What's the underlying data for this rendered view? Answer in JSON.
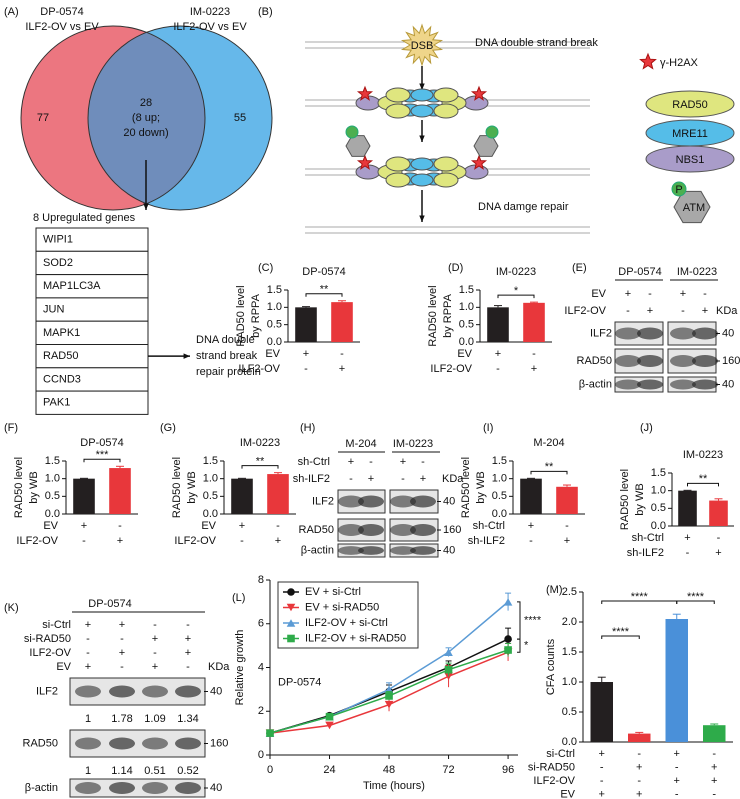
{
  "venn": {
    "panel": "(A)",
    "sets": [
      {
        "title": [
          "DP-0574",
          "ILF2-OV vs EV"
        ],
        "count": 77
      },
      {
        "title": [
          "IM-0223",
          "ILF2-OV vs EV"
        ],
        "count": 55
      }
    ],
    "overlap": {
      "count": 28,
      "detail": [
        "(8 up;",
        "20 down)"
      ]
    },
    "genes_title": "8 Upregulated genes",
    "genes": [
      "WIPI1",
      "SOD2",
      "MAP1LC3A",
      "JUN",
      "MAPK1",
      "RAD50",
      "CCND3",
      "PAK1"
    ],
    "highlight": "RAD50",
    "annotation": [
      "DNA double",
      "strand break",
      "repair protein"
    ]
  },
  "schematic": {
    "panel": "(B)",
    "dsb": "DSB",
    "top_caption": "DNA double strand break",
    "bottom_caption": "DNA damge repair",
    "legend": {
      "marker": "γ-H2AX",
      "proteins": [
        {
          "name": "RAD50",
          "color": "#dfe67f"
        },
        {
          "name": "MRE11",
          "color": "#55bde8"
        },
        {
          "name": "NBS1",
          "color": "#a99cc9"
        }
      ],
      "phospho": "P",
      "kinase": "ATM"
    }
  },
  "blots": [
    {
      "panel": "(E)",
      "groups": [
        "DP-0574",
        "IM-0223"
      ],
      "conditions": [
        {
          "name": "EV",
          "signs": [
            "+",
            "-",
            "+",
            "-"
          ]
        },
        {
          "name": "ILF2-OV",
          "signs": [
            "-",
            "+",
            "-",
            "+"
          ]
        }
      ],
      "unit": "KDa",
      "rows": [
        {
          "name": "ILF2",
          "marker": 40
        },
        {
          "name": "RAD50",
          "marker": 160
        },
        {
          "name": "β-actin",
          "marker": 40
        }
      ]
    },
    {
      "panel": "(H)",
      "groups": [
        "M-204",
        "IM-0223"
      ],
      "conditions": [
        {
          "name": "sh-Ctrl",
          "signs": [
            "+",
            "-",
            "+",
            "-"
          ]
        },
        {
          "name": "sh-ILF2",
          "signs": [
            "-",
            "+",
            "-",
            "+"
          ]
        }
      ],
      "unit": "KDa",
      "rows": [
        {
          "name": "ILF2",
          "marker": 40
        },
        {
          "name": "RAD50",
          "marker": 160
        },
        {
          "name": "β-actin",
          "marker": 40
        }
      ]
    },
    {
      "panel": "(K)",
      "groups": [
        "DP-0574"
      ],
      "conditions": [
        {
          "name": "si-Ctrl",
          "signs": [
            "+",
            "+",
            "-",
            "-"
          ]
        },
        {
          "name": "si-RAD50",
          "signs": [
            "-",
            "-",
            "+",
            "+"
          ]
        },
        {
          "name": "ILF2-OV",
          "signs": [
            "-",
            "+",
            "-",
            "+"
          ]
        },
        {
          "name": "EV",
          "signs": [
            "+",
            "-",
            "+",
            "-"
          ]
        }
      ],
      "unit": "KDa",
      "rows": [
        {
          "name": "ILF2",
          "marker": 40,
          "quant": [
            1,
            1.78,
            1.09,
            1.34
          ]
        },
        {
          "name": "RAD50",
          "marker": 160,
          "quant": [
            1,
            1.14,
            0.51,
            0.52
          ]
        },
        {
          "name": "β-actin",
          "marker": 40
        }
      ]
    }
  ],
  "chart_data": [
    {
      "type": "bar",
      "panel": "(C)",
      "title": "DP-0574",
      "ylabel": [
        "RAD50 level",
        "by RPPA"
      ],
      "values": [
        1.0,
        1.15
      ],
      "errors": [
        0.02,
        0.04
      ],
      "colors": [
        "#231f20",
        "#e8373b"
      ],
      "ylim": [
        0,
        1.5
      ],
      "yticks": [
        {
          "value": 0,
          "label": "0.0"
        },
        0.5,
        {
          "value": 1,
          "label": "1.0"
        },
        1.5
      ],
      "significance": [
        "**"
      ],
      "conditions": [
        {
          "name": "EV",
          "signs": [
            "+",
            "-"
          ]
        },
        {
          "name": "ILF2-OV",
          "signs": [
            "-",
            "+"
          ]
        }
      ]
    },
    {
      "type": "bar",
      "panel": "(D)",
      "title": "IM-0223",
      "ylabel": [
        "RAD50 level",
        "by RPPA"
      ],
      "values": [
        1.0,
        1.13
      ],
      "errors": [
        0.05,
        0.02
      ],
      "colors": [
        "#231f20",
        "#e8373b"
      ],
      "ylim": [
        0,
        1.5
      ],
      "yticks": [
        {
          "value": 0,
          "label": "0.0"
        },
        0.5,
        {
          "value": 1,
          "label": "1.0"
        },
        1.5
      ],
      "significance": [
        "*"
      ],
      "conditions": [
        {
          "name": "EV",
          "signs": [
            "+",
            "-"
          ]
        },
        {
          "name": "ILF2-OV",
          "signs": [
            "-",
            "+"
          ]
        }
      ]
    },
    {
      "type": "bar",
      "panel": "(F)",
      "title": "DP-0574",
      "ylabel": [
        "RAD50 level",
        "by WB"
      ],
      "values": [
        1.0,
        1.3
      ],
      "errors": [
        0.01,
        0.05
      ],
      "colors": [
        "#231f20",
        "#e8373b"
      ],
      "ylim": [
        0,
        1.5
      ],
      "yticks": [
        {
          "value": 0,
          "label": "0.0"
        },
        0.5,
        {
          "value": 1,
          "label": "1.0"
        },
        1.5
      ],
      "significance": [
        "***"
      ],
      "conditions": [
        {
          "name": "EV",
          "signs": [
            "+",
            "-"
          ]
        },
        {
          "name": "ILF2-OV",
          "signs": [
            "-",
            "+"
          ]
        }
      ]
    },
    {
      "type": "bar",
      "panel": "(G)",
      "title": "IM-0223",
      "ylabel": [
        "RAD50 level",
        "by WB"
      ],
      "values": [
        1.0,
        1.13
      ],
      "errors": [
        0.01,
        0.04
      ],
      "colors": [
        "#231f20",
        "#e8373b"
      ],
      "ylim": [
        0,
        1.5
      ],
      "yticks": [
        {
          "value": 0,
          "label": "0.0"
        },
        0.5,
        {
          "value": 1,
          "label": "1.0"
        },
        1.5
      ],
      "significance": [
        "**"
      ],
      "conditions": [
        {
          "name": "EV",
          "signs": [
            "+",
            "-"
          ]
        },
        {
          "name": "ILF2-OV",
          "signs": [
            "-",
            "+"
          ]
        }
      ]
    },
    {
      "type": "bar",
      "panel": "(I)",
      "title": "M-204",
      "ylabel": [
        "RAD50 level",
        "by WB"
      ],
      "values": [
        1.0,
        0.77
      ],
      "errors": [
        0.01,
        0.05
      ],
      "colors": [
        "#231f20",
        "#e8373b"
      ],
      "ylim": [
        0,
        1.5
      ],
      "yticks": [
        {
          "value": 0,
          "label": "0.0"
        },
        0.5,
        {
          "value": 1,
          "label": "1.0"
        },
        1.5
      ],
      "significance": [
        "**"
      ],
      "conditions": [
        {
          "name": "sh-Ctrl",
          "signs": [
            "+",
            "-"
          ]
        },
        {
          "name": "sh-ILF2",
          "signs": [
            "-",
            "+"
          ]
        }
      ]
    },
    {
      "type": "bar",
      "panel": "(J)",
      "title": "IM-0223",
      "ylabel": [
        "RAD50 level",
        "by WB"
      ],
      "values": [
        1.0,
        0.72
      ],
      "errors": [
        0.01,
        0.05
      ],
      "colors": [
        "#231f20",
        "#e8373b"
      ],
      "ylim": [
        0,
        1.5
      ],
      "yticks": [
        {
          "value": 0,
          "label": "0.0"
        },
        0.5,
        {
          "value": 1,
          "label": "1.0"
        },
        1.5
      ],
      "significance": [
        "**"
      ],
      "conditions": [
        {
          "name": "sh-Ctrl",
          "signs": [
            "+",
            "-"
          ]
        },
        {
          "name": "sh-ILF2",
          "signs": [
            "-",
            "+"
          ]
        }
      ]
    },
    {
      "type": "line",
      "panel": "(L)",
      "annotation": "DP-0574",
      "xlabel": "Time (hours)",
      "ylabel": "Relative growth",
      "x": [
        0,
        24,
        48,
        72,
        96
      ],
      "xlim": [
        0,
        100
      ],
      "xticks": [
        0,
        24,
        48,
        72,
        96
      ],
      "ylim": [
        0,
        8
      ],
      "yticks": [
        0,
        2,
        4,
        6,
        8
      ],
      "legend": "upper left",
      "series": [
        {
          "name": "EV + si-Ctrl",
          "color": "#111111",
          "marker": "circle",
          "values": [
            1,
            1.8,
            2.9,
            4.0,
            5.3
          ],
          "errors": [
            0,
            0.1,
            0.3,
            0.3,
            0.5
          ]
        },
        {
          "name": "EV + si-RAD50",
          "color": "#e8373b",
          "marker": "triangle-down",
          "values": [
            1,
            1.35,
            2.3,
            3.6,
            4.7
          ],
          "errors": [
            0,
            0.1,
            0.3,
            0.5,
            0.4
          ]
        },
        {
          "name": "ILF2-OV + si-Ctrl",
          "color": "#5b9bd5",
          "marker": "triangle-up",
          "values": [
            1,
            1.75,
            3.0,
            4.7,
            7.0
          ],
          "errors": [
            0,
            0.1,
            0.3,
            0.2,
            0.4
          ]
        },
        {
          "name": "ILF2-OV + si-RAD50",
          "color": "#2eab4a",
          "marker": "square",
          "values": [
            1,
            1.75,
            2.7,
            3.9,
            4.8
          ],
          "errors": [
            0,
            0.1,
            0.2,
            0.3,
            0.3
          ]
        }
      ],
      "significance": [
        "****",
        "*"
      ]
    },
    {
      "type": "bar",
      "panel": "(M)",
      "ylabel": [
        "CFA counts"
      ],
      "values": [
        1.0,
        0.14,
        2.05,
        0.28
      ],
      "errors": [
        0.08,
        0.02,
        0.08,
        0.02
      ],
      "colors": [
        "#231f20",
        "#e8373b",
        "#4a90d9",
        "#2eab4a"
      ],
      "ylim": [
        0,
        2.5
      ],
      "yticks": [
        {
          "value": 0,
          "label": "0.0"
        },
        0.5,
        {
          "value": 1,
          "label": "1.0"
        },
        1.5,
        {
          "value": 2,
          "label": "2.0"
        },
        2.5
      ],
      "significance": [
        "****",
        "****",
        "****"
      ],
      "conditions": [
        {
          "name": "si-Ctrl",
          "signs": [
            "+",
            "-",
            "+",
            "-"
          ]
        },
        {
          "name": "si-RAD50",
          "signs": [
            "-",
            "+",
            "-",
            "+"
          ]
        },
        {
          "name": "ILF2-OV",
          "signs": [
            "-",
            "-",
            "+",
            "+"
          ]
        },
        {
          "name": "EV",
          "signs": [
            "+",
            "+",
            "-",
            "-"
          ]
        }
      ]
    }
  ]
}
